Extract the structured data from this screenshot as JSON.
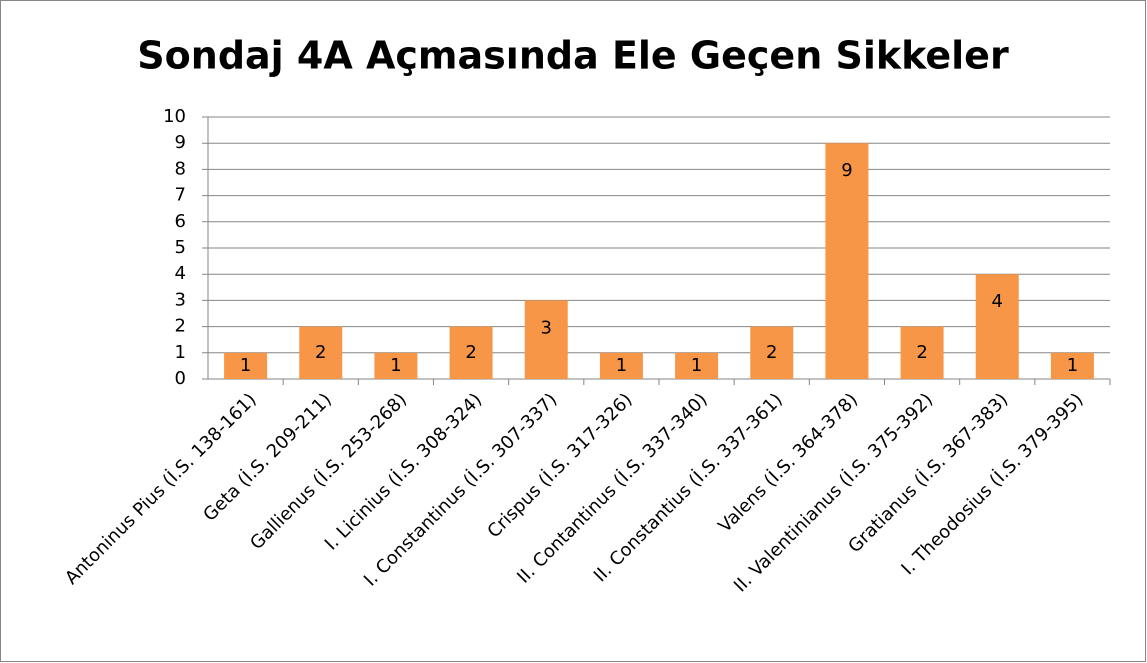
{
  "chart_data": {
    "type": "bar",
    "title": "Sondaj 4A Açmasında Ele Geçen Sikkeler",
    "categories": [
      "Antoninus Pius (İ.S. 138-161)",
      "Geta (İ.S. 209-211)",
      "Gallienus (İ.S. 253-268)",
      "I. Licinius (İ.S. 308-324)",
      "I. Constantinus (İ.S. 307-337)",
      "Crispus (İ.S. 317-326)",
      "II. Contantinus (İ.S. 337-340)",
      "II. Constantius (İ.S. 337-361)",
      "Valens (İ.S. 364-378)",
      "II. Valentinianus (İ.S. 375-392)",
      "Gratianus (İ.S. 367-383)",
      "I. Theodosius (İ.S. 379-395)"
    ],
    "values": [
      1,
      2,
      1,
      2,
      3,
      1,
      1,
      2,
      9,
      2,
      4,
      1
    ],
    "color": "#f79646",
    "ylim": [
      0,
      10
    ],
    "yticks": [
      0,
      1,
      2,
      3,
      4,
      5,
      6,
      7,
      8,
      9,
      10
    ],
    "grid": true
  }
}
